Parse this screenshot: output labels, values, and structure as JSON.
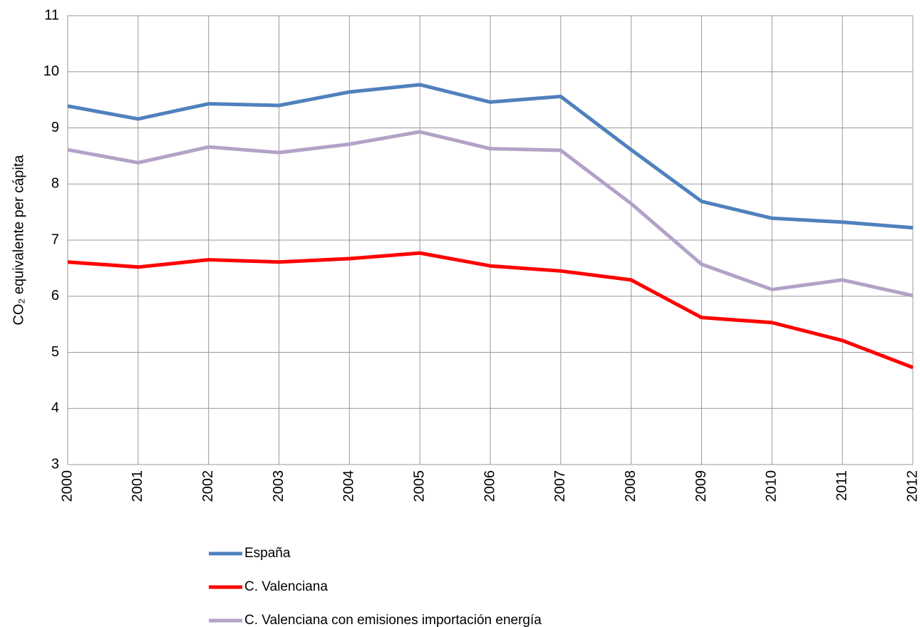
{
  "chart_data": {
    "type": "line",
    "ylabel": "CO₂ equivalente per cápita",
    "categories": [
      "2000",
      "2001",
      "2002",
      "2003",
      "2004",
      "2005",
      "2006",
      "2007",
      "2008",
      "2009",
      "2010",
      "2011",
      "2012"
    ],
    "series": [
      {
        "name": "España",
        "color": "#4f81bd",
        "values": [
          9.39,
          9.16,
          9.43,
          9.4,
          9.64,
          9.77,
          9.46,
          9.56,
          8.61,
          7.69,
          7.39,
          7.32,
          7.22
        ]
      },
      {
        "name": "C. Valenciana",
        "color": "#ff0000",
        "values": [
          6.61,
          6.52,
          6.65,
          6.61,
          6.67,
          6.77,
          6.54,
          6.45,
          6.29,
          5.62,
          5.53,
          5.21,
          4.73
        ]
      },
      {
        "name": "C. Valenciana con emisiones importación energía",
        "color": "#b3a2c7",
        "values": [
          8.61,
          8.38,
          8.66,
          8.56,
          8.71,
          8.93,
          8.63,
          8.6,
          7.65,
          6.57,
          6.12,
          6.29,
          6.01
        ]
      }
    ],
    "ylim": [
      3,
      11
    ],
    "yticks": [
      3,
      4,
      5,
      6,
      7,
      8,
      9,
      10,
      11
    ],
    "grid": true,
    "legend": "bottom"
  }
}
